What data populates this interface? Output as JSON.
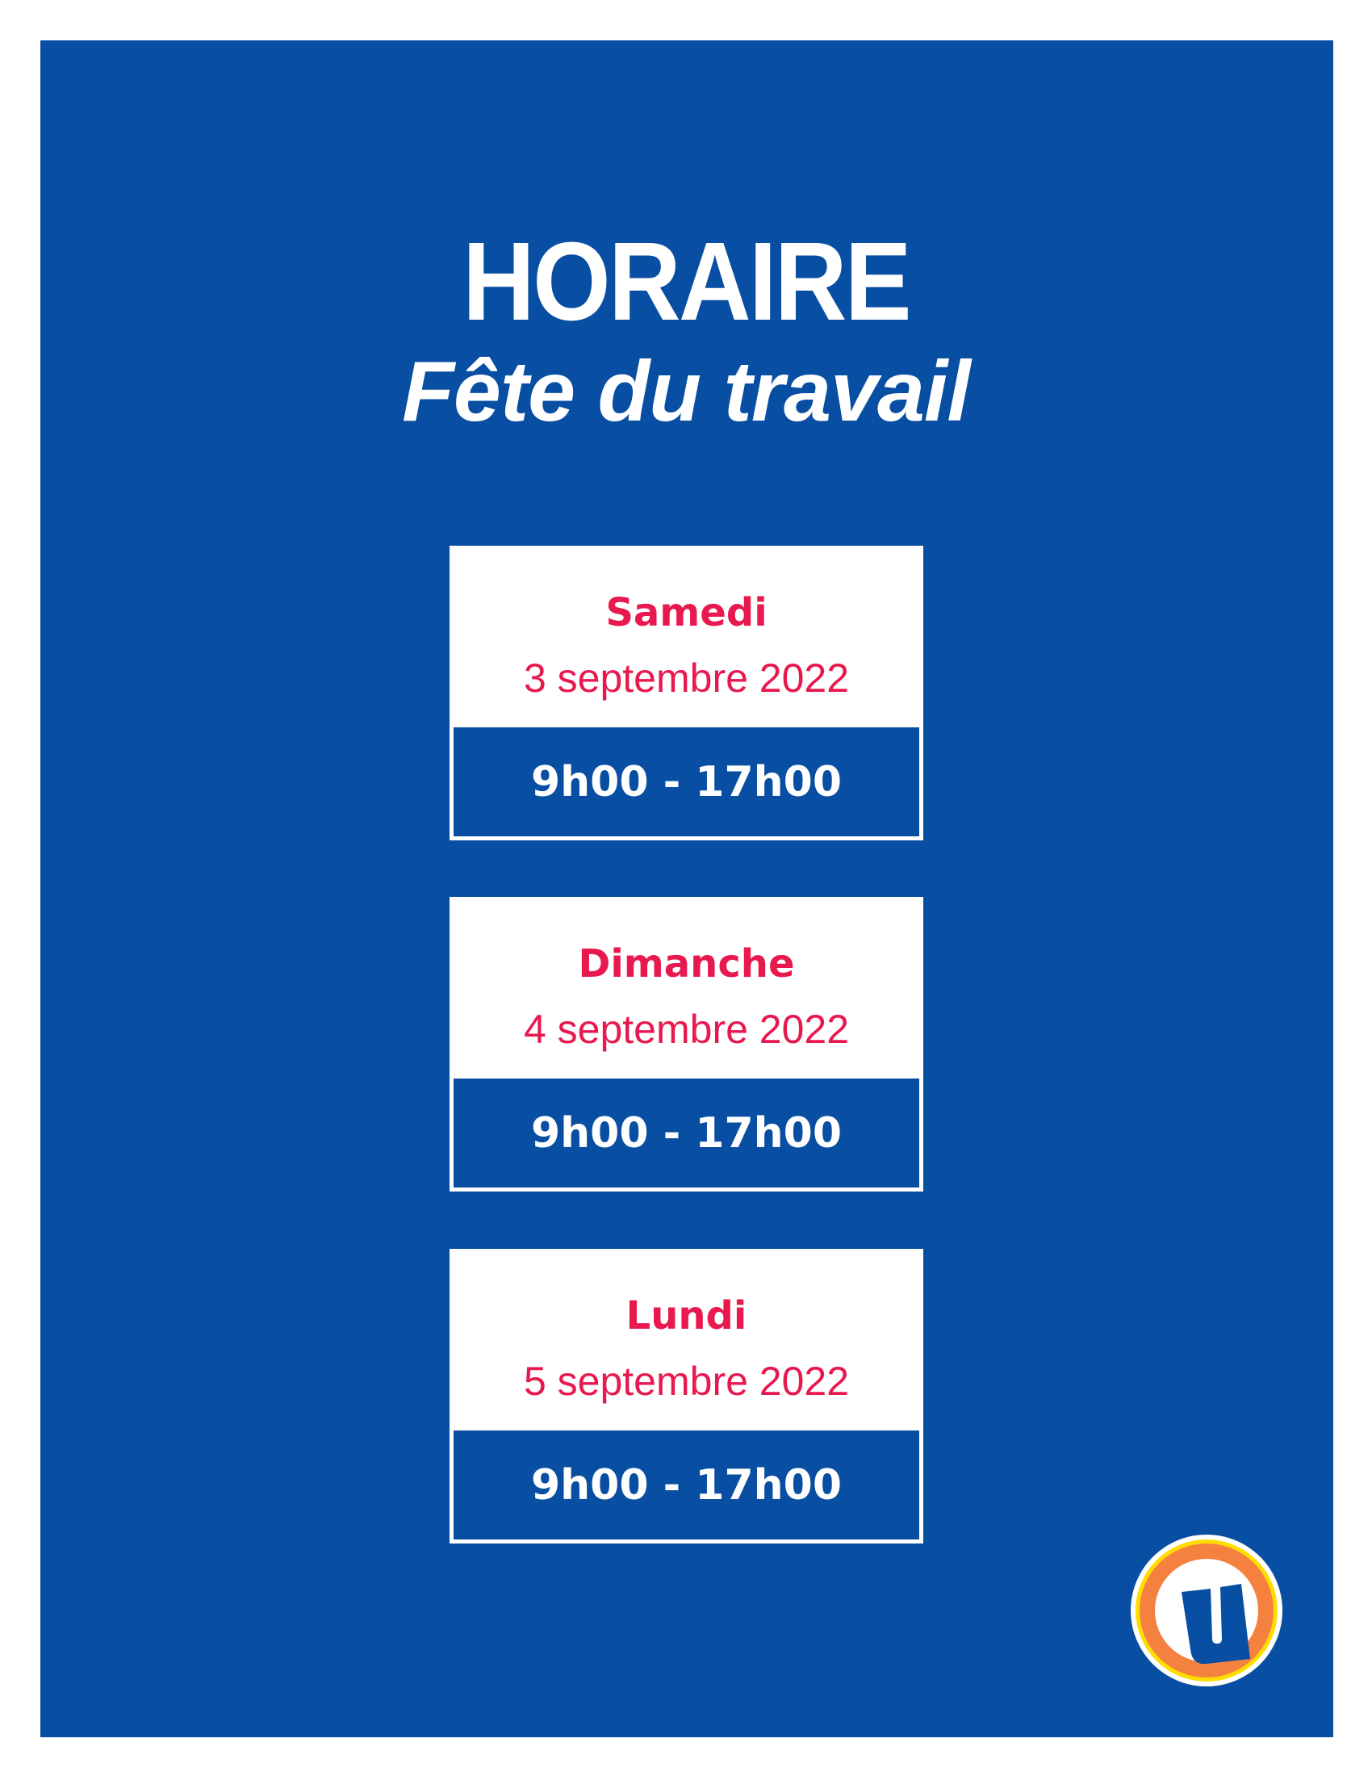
{
  "header": {
    "title": "HORAIRE",
    "subtitle": "Fête du travail"
  },
  "schedule": [
    {
      "day": "Samedi",
      "date": "3 septembre 2022",
      "hours": "9h00 - 17h00"
    },
    {
      "day": "Dimanche",
      "date": "4 septembre 2022",
      "hours": "9h00 - 17h00"
    },
    {
      "day": "Lundi",
      "date": "5 septembre 2022",
      "hours": "9h00 - 17h00"
    }
  ],
  "colors": {
    "background": "#084ea2",
    "accent": "#e8194f",
    "logo_orange": "#f58140",
    "logo_yellow": "#ffdd00"
  },
  "logo": {
    "icon": "u-circle-logo"
  }
}
